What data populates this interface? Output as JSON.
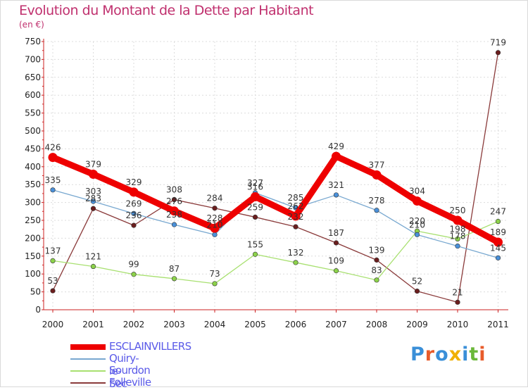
{
  "chart_data": {
    "type": "line",
    "title": "Evolution du Montant de la Dette par Habitant",
    "ylabel": "(en €)",
    "xlabel": "",
    "categories": [
      "2000",
      "2001",
      "2002",
      "2003",
      "2004",
      "2005",
      "2006",
      "2007",
      "2008",
      "2009",
      "2010",
      "2011"
    ],
    "ylim": [
      0,
      750
    ],
    "yticks": [
      0,
      50,
      100,
      150,
      200,
      250,
      300,
      350,
      400,
      450,
      500,
      550,
      600,
      650,
      700,
      750
    ],
    "grid": true,
    "legend_position": "bottom-left",
    "series": [
      {
        "name": "ESCLAINVILLERS",
        "color": "#ee0000",
        "values": [
          426,
          379,
          329,
          276,
          228,
          316,
          262,
          429,
          377,
          304,
          250,
          189
        ]
      },
      {
        "name": "Quiry-le-Sec",
        "color": "#4a90d9",
        "values": [
          335,
          303,
          269,
          238,
          210,
          327,
          285,
          321,
          278,
          210,
          178,
          145
        ]
      },
      {
        "name": "Sourdon",
        "color": "#8cd24a",
        "values": [
          137,
          121,
          99,
          87,
          73,
          155,
          132,
          109,
          83,
          220,
          198,
          247
        ]
      },
      {
        "name": "Folleville",
        "color": "#6b1e1e",
        "values": [
          53,
          283,
          236,
          308,
          284,
          259,
          232,
          187,
          139,
          52,
          21,
          719
        ]
      }
    ]
  }
}
